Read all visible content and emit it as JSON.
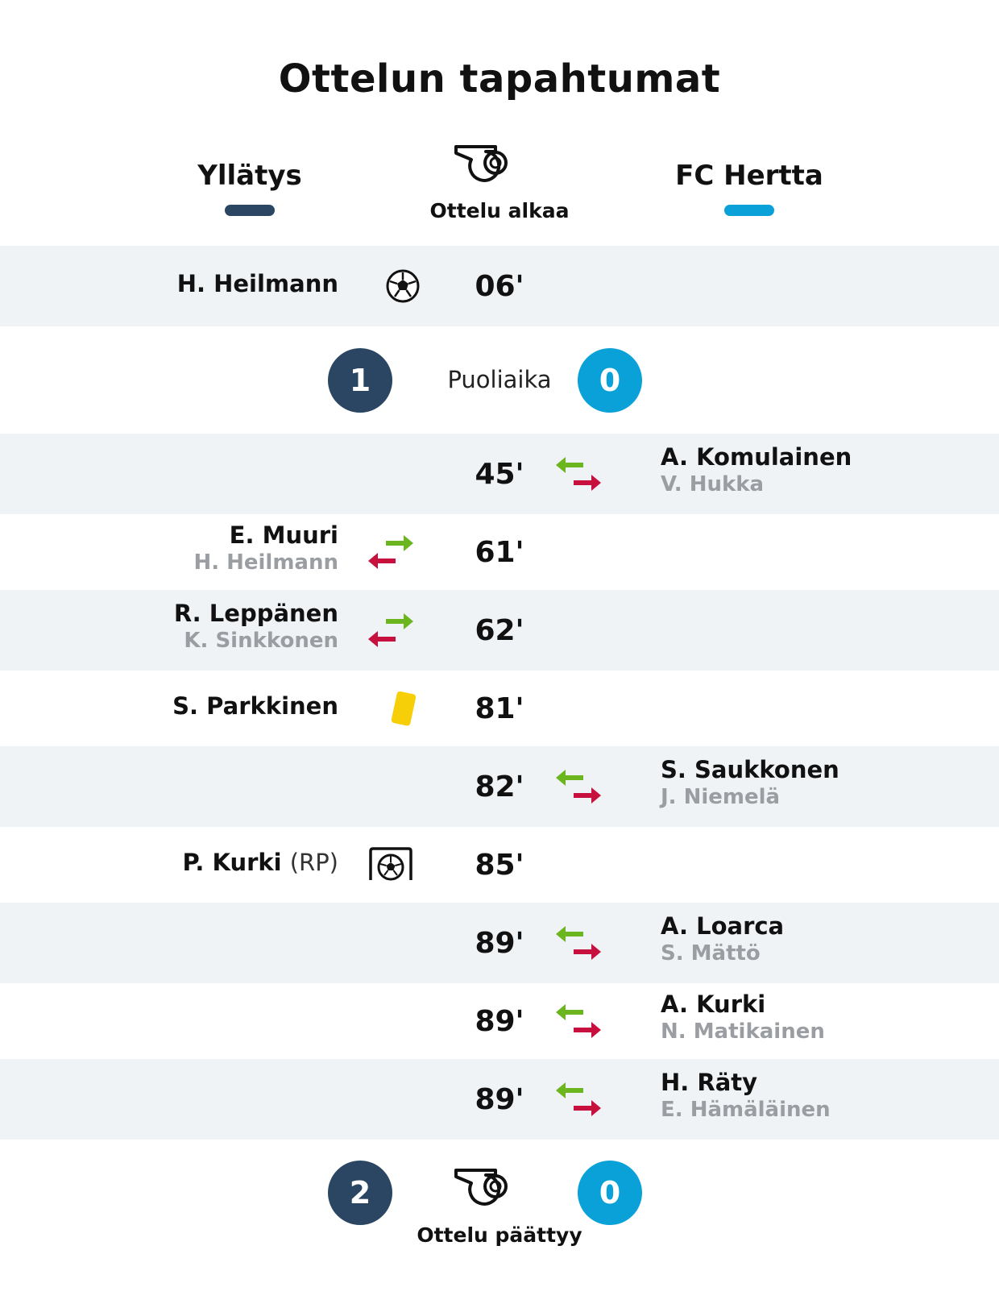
{
  "title": "Ottelun tapahtumat",
  "home_team": {
    "name": "Yllätys",
    "color": "#2a4662"
  },
  "away_team": {
    "name": "FC Hertta",
    "color": "#0aa0d8"
  },
  "start_label": "Ottelu alkaa",
  "halftime": {
    "label": "Puoliaika",
    "home_score": "1",
    "away_score": "0"
  },
  "fulltime": {
    "label": "Ottelu päättyy",
    "home_score": "2",
    "away_score": "0"
  },
  "events": [
    {
      "minute": "06'",
      "side": "home",
      "type": "goal-icon",
      "player": "H. Heilmann",
      "sub": "",
      "note": ""
    },
    {
      "minute": "45'",
      "side": "away",
      "type": "substitution-icon",
      "player": "A. Komulainen",
      "sub": "V. Hukka",
      "note": ""
    },
    {
      "minute": "61'",
      "side": "home",
      "type": "substitution-icon",
      "player": "E. Muuri",
      "sub": "H. Heilmann",
      "note": ""
    },
    {
      "minute": "62'",
      "side": "home",
      "type": "substitution-icon",
      "player": "R. Leppänen",
      "sub": "K. Sinkkonen",
      "note": ""
    },
    {
      "minute": "81'",
      "side": "home",
      "type": "yellow-card-icon",
      "player": "S. Parkkinen",
      "sub": "",
      "note": ""
    },
    {
      "minute": "82'",
      "side": "away",
      "type": "substitution-icon",
      "player": "S. Saukkonen",
      "sub": "J. Niemelä",
      "note": ""
    },
    {
      "minute": "85'",
      "side": "home",
      "type": "penalty-goal-icon",
      "player": "P. Kurki",
      "sub": "",
      "note": "(RP)"
    },
    {
      "minute": "89'",
      "side": "away",
      "type": "substitution-icon",
      "player": "A. Loarca",
      "sub": "S. Mättö",
      "note": ""
    },
    {
      "minute": "89'",
      "side": "away",
      "type": "substitution-icon",
      "player": "A. Kurki",
      "sub": "N. Matikainen",
      "note": ""
    },
    {
      "minute": "89'",
      "side": "away",
      "type": "substitution-icon",
      "player": "H. Räty",
      "sub": "E. Hämäläinen",
      "note": ""
    }
  ]
}
